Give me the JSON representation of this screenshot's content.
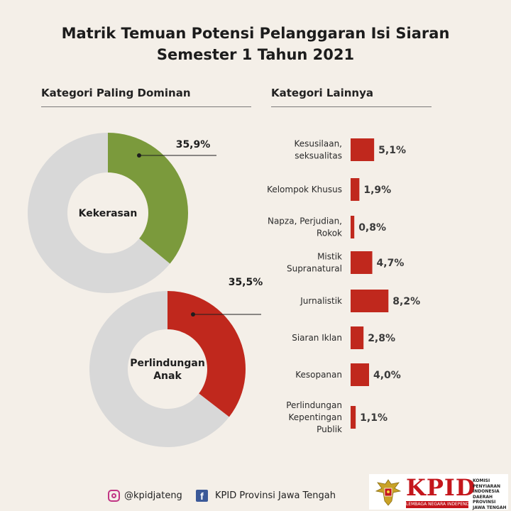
{
  "title": {
    "line1": "Matrik Temuan Potensi Pelanggaran Isi Siaran",
    "line2": "Semester 1 Tahun 2021"
  },
  "sections": {
    "left_heading": "Kategori Paling Dominan",
    "right_heading": "Kategori Lainnya"
  },
  "colors": {
    "donut_rest": "#d8d8d8",
    "kekerasan": "#7b9a3c",
    "perlindungan_anak": "#c0281d",
    "bars": "#c0281d",
    "background": "#f4efe8"
  },
  "chart_data": [
    {
      "type": "pie",
      "style": "donut",
      "center_label": "Kekerasan",
      "value": 35.9,
      "value_label": "35,9%",
      "color": "#7b9a3c"
    },
    {
      "type": "pie",
      "style": "donut",
      "center_label": [
        "Perlindungan",
        "Anak"
      ],
      "value": 35.5,
      "value_label": "35,5%",
      "color": "#c0281d"
    },
    {
      "type": "bar",
      "orientation": "horizontal",
      "categories": [
        [
          "Kesusilaan,",
          "seksualitas"
        ],
        [
          "Kelompok Khusus"
        ],
        [
          "Napza, Perjudian,",
          "Rokok"
        ],
        [
          "Mistik",
          "Supranatural"
        ],
        [
          "Jurnalistik"
        ],
        [
          "Siaran Iklan"
        ],
        [
          "Kesopanan"
        ],
        [
          "Perlindungan",
          "Kepentingan",
          "Publik"
        ]
      ],
      "values": [
        5.1,
        1.9,
        0.8,
        4.7,
        8.2,
        2.8,
        4.0,
        1.1
      ],
      "value_labels": [
        "5,1%",
        "1,9%",
        "0,8%",
        "4,7%",
        "8,2%",
        "2,8%",
        "4,0%",
        "1,1%"
      ],
      "color": "#c0281d"
    }
  ],
  "footer": {
    "instagram": "@kpidjateng",
    "facebook": "KPID Provinsi Jawa Tengah",
    "logo_word": "KPID",
    "logo_tagline": "LEMBAGA NEGARA INDEPENDEN",
    "logo_side": [
      "KOMISI",
      "PENYIARAN",
      "INDONESIA",
      "DAERAH",
      "PROVINSI",
      "JAWA TENGAH"
    ],
    "ig_icon": "instagram-icon",
    "fb_icon": "facebook-icon",
    "emblem_icon": "garuda-emblem-icon"
  }
}
